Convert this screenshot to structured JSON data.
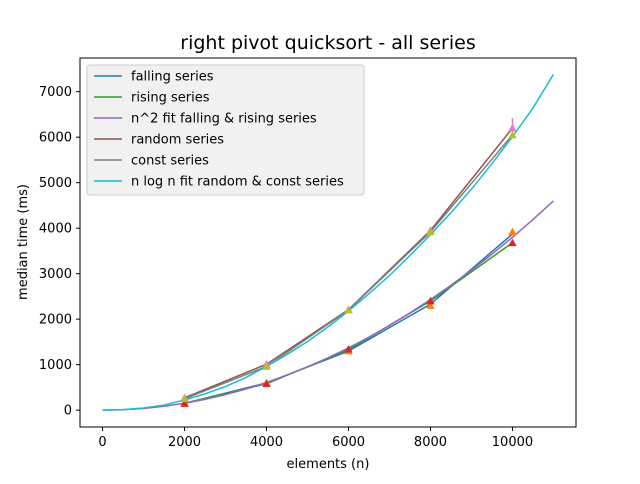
{
  "chart_data": {
    "type": "line",
    "title": "right pivot quicksort - all series",
    "xlabel": "elements (n)",
    "ylabel": "median time (ms)",
    "xlim": [
      -550,
      11550
    ],
    "ylim": [
      -370,
      7740
    ],
    "xticks": [
      0,
      2000,
      4000,
      6000,
      8000,
      10000
    ],
    "yticks": [
      0,
      1000,
      2000,
      3000,
      4000,
      5000,
      6000,
      7000
    ],
    "legend_position": "upper-left",
    "grid": false,
    "series": [
      {
        "name": "falling series",
        "color": "#1f77b4",
        "x": [
          2000,
          4000,
          6000,
          8000,
          10000
        ],
        "y": [
          150,
          600,
          1300,
          2330,
          3870
        ],
        "markers": {
          "color": "#ff7f0e",
          "shape": "triangle",
          "y": [
            150,
            600,
            1300,
            2300,
            3920
          ]
        }
      },
      {
        "name": "rising series",
        "color": "#2ca02c",
        "x": [
          2000,
          4000,
          6000,
          8000,
          10000
        ],
        "y": [
          150,
          580,
          1330,
          2400,
          3680
        ],
        "markers": {
          "color": "#d62728",
          "shape": "triangle",
          "y": [
            150,
            580,
            1340,
            2400,
            3680
          ]
        }
      },
      {
        "name": "n^2 fit falling & rising series",
        "color": "#9467bd",
        "x": [
          0,
          500,
          1000,
          1500,
          2000,
          2500,
          3000,
          3500,
          4000,
          4500,
          5000,
          5500,
          6000,
          6500,
          7000,
          7500,
          8000,
          8500,
          9000,
          9500,
          10000,
          10500,
          11000
        ],
        "y": [
          0,
          9.5,
          38,
          85,
          152,
          237,
          342,
          465,
          608,
          769,
          950,
          1150,
          1368,
          1605,
          1862,
          2137,
          2432,
          2745,
          3078,
          3429,
          3800,
          4190,
          4598
        ]
      },
      {
        "name": "random series",
        "color": "#8c564b",
        "x": [
          2000,
          4000,
          6000,
          8000,
          10000
        ],
        "y": [
          270,
          1010,
          2210,
          3950,
          6200
        ],
        "markers": {
          "color": "#e377c2",
          "shape": "triangle",
          "y": [
            270,
            1010,
            2210,
            3950,
            6200
          ],
          "errorbar_y": [
            6000,
            6420
          ]
        }
      },
      {
        "name": "const series",
        "color": "#7f7f7f",
        "x": [
          2000,
          4000,
          6000,
          8000,
          10000
        ],
        "y": [
          250,
          960,
          2200,
          3920,
          6050
        ],
        "markers": {
          "color": "#bcbd22",
          "shape": "triangle",
          "y": [
            250,
            960,
            2200,
            3920,
            6050
          ]
        }
      },
      {
        "name": "n log n fit random & const series",
        "color": "#17becf",
        "x": [
          0,
          500,
          1000,
          1500,
          2000,
          2500,
          3000,
          3500,
          4000,
          4500,
          5000,
          5500,
          6000,
          6500,
          7000,
          7500,
          8000,
          8500,
          9000,
          9500,
          10000,
          10500,
          11000
        ],
        "y": [
          0,
          12,
          47,
          112,
          224,
          360,
          520,
          720,
          960,
          1225,
          1510,
          1830,
          2180,
          2560,
          2960,
          3400,
          3860,
          4340,
          4860,
          5420,
          6010,
          6640,
          7380
        ]
      }
    ]
  }
}
